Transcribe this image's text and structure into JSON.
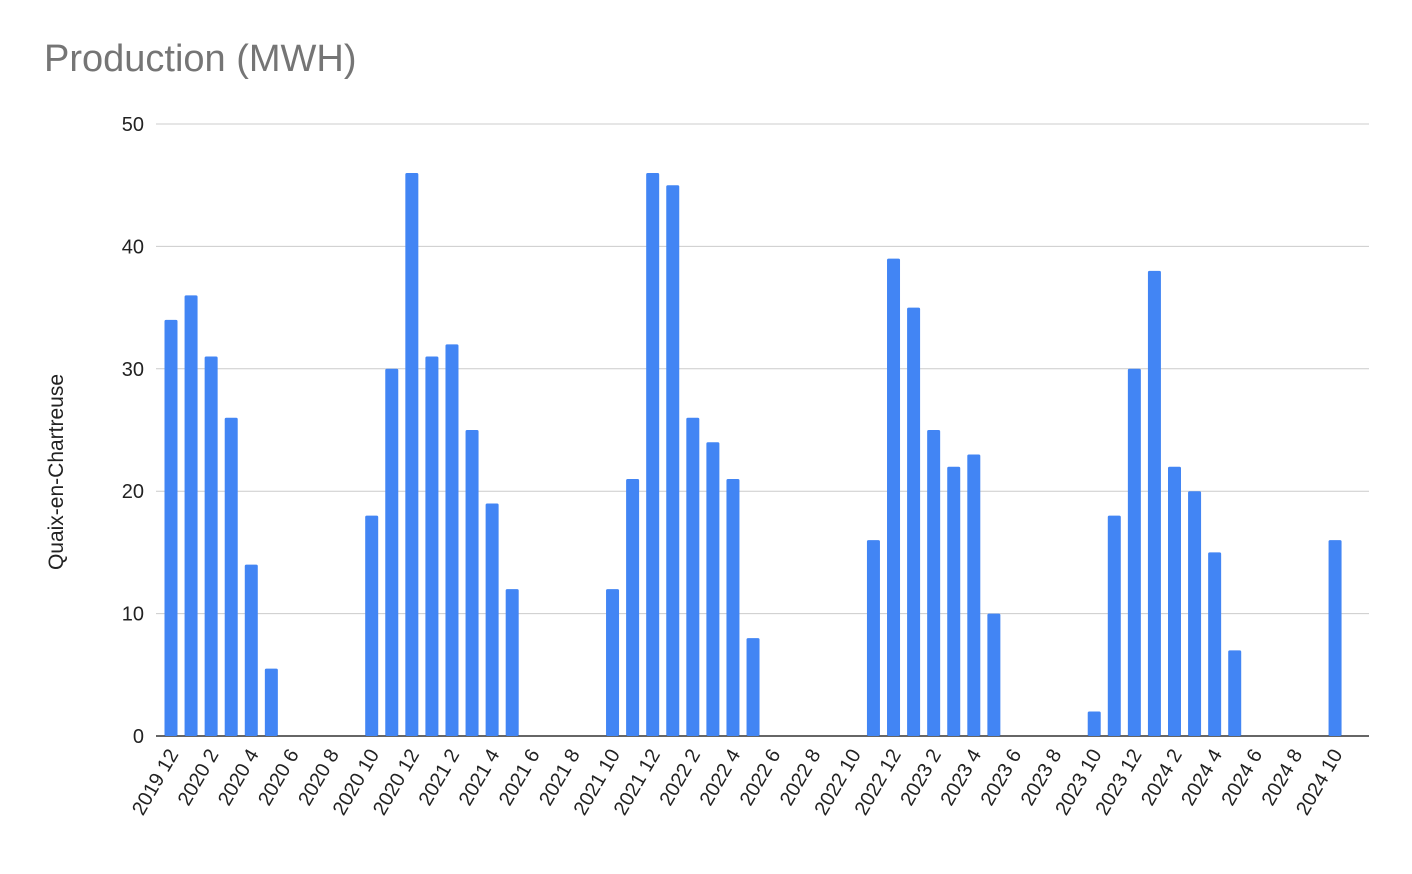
{
  "chart_data": {
    "type": "bar",
    "title": "Production (MWH)",
    "xlabel": "",
    "ylabel": "Quaix-en-Chartreuse",
    "ylim": [
      0,
      50
    ],
    "yticks": [
      0,
      10,
      20,
      30,
      40,
      50
    ],
    "grid": true,
    "bar_color": "#4285f4",
    "categories": [
      "2019 12",
      "2020 1",
      "2020 2",
      "2020 3",
      "2020 4",
      "2020 5",
      "2020 6",
      "2020 7",
      "2020 8",
      "2020 9",
      "2020 10",
      "2020 11",
      "2020 12",
      "2021 1",
      "2021 2",
      "2021 3",
      "2021 4",
      "2021 5",
      "2021 6",
      "2021 7",
      "2021 8",
      "2021 9",
      "2021 10",
      "2021 11",
      "2021 12",
      "2022 1",
      "2022 2",
      "2022 3",
      "2022 4",
      "2022 5",
      "2022 6",
      "2022 7",
      "2022 8",
      "2022 9",
      "2022 10",
      "2022 11",
      "2022 12",
      "2023 1",
      "2023 2",
      "2023 3",
      "2023 4",
      "2023 5",
      "2023 6",
      "2023 7",
      "2023 8",
      "2023 9",
      "2023 10",
      "2023 11",
      "2023 12",
      "2024 1",
      "2024 2",
      "2024 3",
      "2024 4",
      "2024 5",
      "2024 6",
      "2024 7",
      "2024 8",
      "2024 9",
      "2024 10"
    ],
    "tick_labels": [
      "2019 12",
      "2020 2",
      "2020 4",
      "2020 6",
      "2020 8",
      "2020 10",
      "2020 12",
      "2021 2",
      "2021 4",
      "2021 6",
      "2021 8",
      "2021 10",
      "2021 12",
      "2022 2",
      "2022 4",
      "2022 6",
      "2022 8",
      "2022 10",
      "2022 12",
      "2023 2",
      "2023 4",
      "2023 6",
      "2023 8",
      "2023 10",
      "2023 12",
      "2024 2",
      "2024 4",
      "2024 6",
      "2024 8",
      "2024 10"
    ],
    "values": [
      34,
      36,
      31,
      26,
      14,
      5.5,
      0,
      0,
      0,
      0,
      18,
      30,
      46,
      31,
      32,
      25,
      19,
      12,
      0,
      0,
      0,
      0,
      12,
      21,
      46,
      45,
      26,
      24,
      21,
      8,
      0,
      0,
      0,
      0,
      0,
      16,
      39,
      35,
      25,
      22,
      23,
      10,
      0,
      0,
      0,
      0,
      2,
      18,
      30,
      38,
      22,
      20,
      15,
      7,
      0,
      0,
      0,
      0,
      16
    ]
  }
}
